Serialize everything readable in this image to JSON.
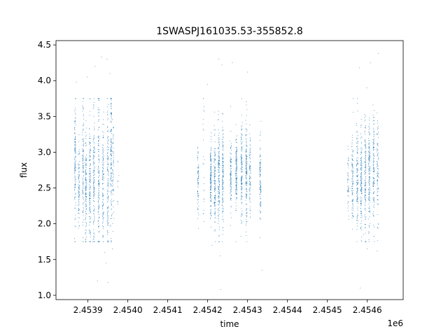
{
  "chart_data": {
    "type": "scatter",
    "title": "1SWASPJ161035.53-355852.8",
    "xlabel": "time",
    "ylabel": "flux",
    "x_offset_label": "1e6",
    "xlim": [
      2.45382,
      2.45469
    ],
    "ylim": [
      0.94,
      4.56
    ],
    "x_ticks": [
      2.4539,
      2.454,
      2.4541,
      2.4542,
      2.4543,
      2.4544,
      2.4545,
      2.4546
    ],
    "x_tick_labels": [
      "2.4539",
      "2.4540",
      "2.4541",
      "2.4542",
      "2.4543",
      "2.4544",
      "2.4545",
      "2.4546"
    ],
    "y_ticks": [
      1.0,
      1.5,
      2.0,
      2.5,
      3.0,
      3.5,
      4.0,
      4.5
    ],
    "y_tick_labels": [
      "1.0",
      "1.5",
      "2.0",
      "2.5",
      "3.0",
      "3.5",
      "4.0",
      "4.5"
    ],
    "grid": false,
    "point_color": "#1f77b4",
    "series": [
      {
        "clusters": [
          {
            "x_center": 2.453868,
            "y_mean": 2.9,
            "y_spread": 0.4,
            "n": 140
          },
          {
            "x_center": 2.453877,
            "y_mean": 2.55,
            "y_spread": 0.3,
            "n": 90
          },
          {
            "x_center": 2.453888,
            "y_mean": 2.85,
            "y_spread": 0.45,
            "n": 120
          },
          {
            "x_center": 2.453895,
            "y_mean": 2.5,
            "y_spread": 0.4,
            "n": 140
          },
          {
            "x_center": 2.453905,
            "y_mean": 2.6,
            "y_spread": 0.45,
            "n": 150
          },
          {
            "x_center": 2.453915,
            "y_mean": 2.65,
            "y_spread": 0.5,
            "n": 140
          },
          {
            "x_center": 2.453927,
            "y_mean": 2.6,
            "y_spread": 0.55,
            "n": 150
          },
          {
            "x_center": 2.453938,
            "y_mean": 2.55,
            "y_spread": 0.45,
            "n": 120
          },
          {
            "x_center": 2.45395,
            "y_mean": 2.6,
            "y_spread": 0.55,
            "n": 130
          },
          {
            "x_center": 2.453958,
            "y_mean": 2.95,
            "y_spread": 0.55,
            "n": 150
          },
          {
            "x_center": 2.453963,
            "y_mean": 2.8,
            "y_spread": 0.4,
            "n": 60
          },
          {
            "x_center": 2.453976,
            "y_mean": 2.6,
            "y_spread": 0.3,
            "n": 10
          },
          {
            "x_center": 2.454176,
            "y_mean": 2.6,
            "y_spread": 0.25,
            "n": 80
          },
          {
            "x_center": 2.45419,
            "y_mean": 2.9,
            "y_spread": 0.5,
            "n": 25
          },
          {
            "x_center": 2.454208,
            "y_mean": 2.65,
            "y_spread": 0.25,
            "n": 150
          },
          {
            "x_center": 2.454218,
            "y_mean": 2.6,
            "y_spread": 0.3,
            "n": 140
          },
          {
            "x_center": 2.454228,
            "y_mean": 2.65,
            "y_spread": 0.35,
            "n": 160
          },
          {
            "x_center": 2.454238,
            "y_mean": 2.7,
            "y_spread": 0.35,
            "n": 150
          },
          {
            "x_center": 2.454258,
            "y_mean": 2.7,
            "y_spread": 0.25,
            "n": 110
          },
          {
            "x_center": 2.454272,
            "y_mean": 2.7,
            "y_spread": 0.25,
            "n": 150
          },
          {
            "x_center": 2.454285,
            "y_mean": 2.75,
            "y_spread": 0.35,
            "n": 150
          },
          {
            "x_center": 2.454297,
            "y_mean": 2.7,
            "y_spread": 0.35,
            "n": 160
          },
          {
            "x_center": 2.454306,
            "y_mean": 2.65,
            "y_spread": 0.3,
            "n": 90
          },
          {
            "x_center": 2.454332,
            "y_mean": 2.6,
            "y_spread": 0.3,
            "n": 110
          },
          {
            "x_center": 2.454552,
            "y_mean": 2.6,
            "y_spread": 0.25,
            "n": 50
          },
          {
            "x_center": 2.454563,
            "y_mean": 2.65,
            "y_spread": 0.35,
            "n": 110
          },
          {
            "x_center": 2.454575,
            "y_mean": 2.6,
            "y_spread": 0.35,
            "n": 130
          },
          {
            "x_center": 2.454585,
            "y_mean": 2.55,
            "y_spread": 0.35,
            "n": 150
          },
          {
            "x_center": 2.454595,
            "y_mean": 2.65,
            "y_spread": 0.4,
            "n": 140
          },
          {
            "x_center": 2.454605,
            "y_mean": 2.7,
            "y_spread": 0.4,
            "n": 150
          },
          {
            "x_center": 2.454616,
            "y_mean": 2.75,
            "y_spread": 0.4,
            "n": 130
          },
          {
            "x_center": 2.454626,
            "y_mean": 2.7,
            "y_spread": 0.35,
            "n": 90
          }
        ],
        "outliers": [
          {
            "x": 2.453871,
            "y": 3.98
          },
          {
            "x": 2.453898,
            "y": 4.05
          },
          {
            "x": 2.453918,
            "y": 4.2
          },
          {
            "x": 2.453934,
            "y": 4.33
          },
          {
            "x": 2.453948,
            "y": 4.3
          },
          {
            "x": 2.453955,
            "y": 4.1
          },
          {
            "x": 2.453942,
            "y": 1.6
          },
          {
            "x": 2.453946,
            "y": 1.45
          },
          {
            "x": 2.453951,
            "y": 1.18
          },
          {
            "x": 2.453924,
            "y": 1.2
          },
          {
            "x": 2.453961,
            "y": 1.65
          },
          {
            "x": 2.453912,
            "y": 1.75
          },
          {
            "x": 2.454228,
            "y": 4.3
          },
          {
            "x": 2.454236,
            "y": 4.22
          },
          {
            "x": 2.4542,
            "y": 3.95
          },
          {
            "x": 2.454262,
            "y": 4.25
          },
          {
            "x": 2.4543,
            "y": 4.12
          },
          {
            "x": 2.454232,
            "y": 1.55
          },
          {
            "x": 2.454233,
            "y": 1.08
          },
          {
            "x": 2.454211,
            "y": 1.7
          },
          {
            "x": 2.454271,
            "y": 1.75
          },
          {
            "x": 2.454336,
            "y": 1.35
          },
          {
            "x": 2.45458,
            "y": 4.18
          },
          {
            "x": 2.454608,
            "y": 4.25
          },
          {
            "x": 2.454628,
            "y": 4.38
          },
          {
            "x": 2.454599,
            "y": 3.9
          },
          {
            "x": 2.454582,
            "y": 1.1
          },
          {
            "x": 2.4546,
            "y": 1.65
          },
          {
            "x": 2.454625,
            "y": 1.62
          },
          {
            "x": 2.454591,
            "y": 1.85
          }
        ]
      }
    ]
  }
}
